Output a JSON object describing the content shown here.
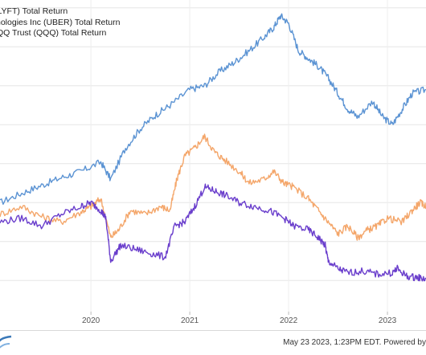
{
  "chart_data": {
    "type": "line",
    "title": "",
    "xlabel": "",
    "ylabel": "",
    "x_tick_labels": [
      "2020",
      "2021",
      "2022",
      "2023"
    ],
    "grid": true,
    "legend_placement": "top-left",
    "series": [
      {
        "name": "(LYFT) Total Return",
        "color": "#5b93d3",
        "points": [
          [
            2019.08,
            0
          ],
          [
            2019.3,
            12
          ],
          [
            2019.5,
            22
          ],
          [
            2019.7,
            32
          ],
          [
            2019.9,
            40
          ],
          [
            2020.1,
            52
          ],
          [
            2020.2,
            30
          ],
          [
            2020.35,
            70
          ],
          [
            2020.5,
            95
          ],
          [
            2020.65,
            112
          ],
          [
            2020.8,
            125
          ],
          [
            2021.0,
            145
          ],
          [
            2021.15,
            150
          ],
          [
            2021.3,
            168
          ],
          [
            2021.45,
            180
          ],
          [
            2021.6,
            195
          ],
          [
            2021.75,
            212
          ],
          [
            2021.85,
            225
          ],
          [
            2021.92,
            240
          ],
          [
            2022.0,
            230
          ],
          [
            2022.1,
            195
          ],
          [
            2022.2,
            185
          ],
          [
            2022.3,
            175
          ],
          [
            2022.4,
            160
          ],
          [
            2022.5,
            140
          ],
          [
            2022.6,
            120
          ],
          [
            2022.7,
            110
          ],
          [
            2022.85,
            130
          ],
          [
            2022.95,
            110
          ],
          [
            2023.05,
            100
          ],
          [
            2023.15,
            120
          ],
          [
            2023.25,
            140
          ],
          [
            2023.39,
            145
          ]
        ]
      },
      {
        "name": "nologies Inc (UBER) Total Return",
        "color": "#f4a66a",
        "points": [
          [
            2019.08,
            -15
          ],
          [
            2019.3,
            -5
          ],
          [
            2019.5,
            -18
          ],
          [
            2019.7,
            -25
          ],
          [
            2019.9,
            -12
          ],
          [
            2020.0,
            -5
          ],
          [
            2020.1,
            5
          ],
          [
            2020.2,
            -45
          ],
          [
            2020.28,
            -35
          ],
          [
            2020.4,
            -10
          ],
          [
            2020.55,
            -15
          ],
          [
            2020.7,
            -5
          ],
          [
            2020.8,
            -10
          ],
          [
            2020.87,
            30
          ],
          [
            2020.95,
            60
          ],
          [
            2021.05,
            70
          ],
          [
            2021.15,
            85
          ],
          [
            2021.25,
            65
          ],
          [
            2021.35,
            55
          ],
          [
            2021.5,
            40
          ],
          [
            2021.6,
            25
          ],
          [
            2021.75,
            30
          ],
          [
            2021.85,
            40
          ],
          [
            2021.95,
            25
          ],
          [
            2022.05,
            20
          ],
          [
            2022.2,
            5
          ],
          [
            2022.3,
            -10
          ],
          [
            2022.4,
            -25
          ],
          [
            2022.5,
            -40
          ],
          [
            2022.6,
            -30
          ],
          [
            2022.7,
            -45
          ],
          [
            2022.8,
            -35
          ],
          [
            2022.9,
            -30
          ],
          [
            2023.0,
            -20
          ],
          [
            2023.15,
            -25
          ],
          [
            2023.25,
            -10
          ],
          [
            2023.33,
            0
          ],
          [
            2023.39,
            -5
          ]
        ]
      },
      {
        "name": "QQ Trust (QQQ) Total Return",
        "color": "#6a3ecc",
        "points": [
          [
            2019.08,
            -25
          ],
          [
            2019.3,
            -20
          ],
          [
            2019.5,
            -30
          ],
          [
            2019.7,
            -15
          ],
          [
            2019.9,
            -5
          ],
          [
            2020.0,
            0
          ],
          [
            2020.1,
            -10
          ],
          [
            2020.15,
            -20
          ],
          [
            2020.2,
            -75
          ],
          [
            2020.3,
            -55
          ],
          [
            2020.45,
            -60
          ],
          [
            2020.6,
            -65
          ],
          [
            2020.75,
            -70
          ],
          [
            2020.85,
            -30
          ],
          [
            2020.95,
            -25
          ],
          [
            2021.05,
            -5
          ],
          [
            2021.15,
            20
          ],
          [
            2021.25,
            15
          ],
          [
            2021.35,
            10
          ],
          [
            2021.5,
            0
          ],
          [
            2021.65,
            -5
          ],
          [
            2021.8,
            -10
          ],
          [
            2021.95,
            -20
          ],
          [
            2022.05,
            -30
          ],
          [
            2022.2,
            -35
          ],
          [
            2022.3,
            -45
          ],
          [
            2022.37,
            -55
          ],
          [
            2022.4,
            -75
          ],
          [
            2022.5,
            -85
          ],
          [
            2022.6,
            -90
          ],
          [
            2022.75,
            -88
          ],
          [
            2022.9,
            -92
          ],
          [
            2023.05,
            -90
          ],
          [
            2023.1,
            -85
          ],
          [
            2023.2,
            -95
          ],
          [
            2023.3,
            -96
          ],
          [
            2023.39,
            -98
          ]
        ]
      }
    ]
  },
  "legend": {
    "item_1": "(LYFT) Total Return",
    "item_2": "nologies Inc (UBER) Total Return",
    "item_3": "QQ Trust (QQQ) Total Return"
  },
  "footer": {
    "timestamp": "May 23 2023, 1:23PM EDT.",
    "powered_by": "Powered by"
  }
}
